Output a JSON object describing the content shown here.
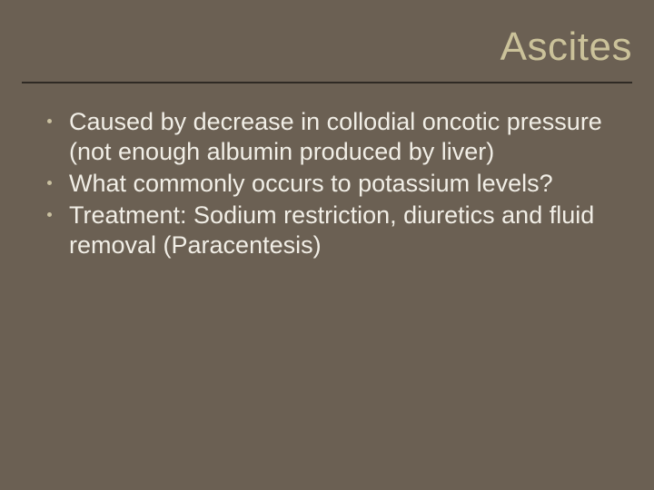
{
  "slide": {
    "background_color": "#6b6053",
    "title": {
      "text": "Ascites",
      "color": "#cbc29a",
      "fontsize": 44,
      "align": "right",
      "underline_color": "#2f2a24"
    },
    "body": {
      "text_color": "#f1eee6",
      "bullet_color": "#c9c0a0",
      "fontsize": 27,
      "items": [
        "Caused by decrease in collodial oncotic pressure (not enough albumin produced by liver)",
        "What commonly occurs to potassium levels?",
        "Treatment: Sodium restriction, diuretics and fluid removal (Paracentesis)"
      ]
    }
  }
}
